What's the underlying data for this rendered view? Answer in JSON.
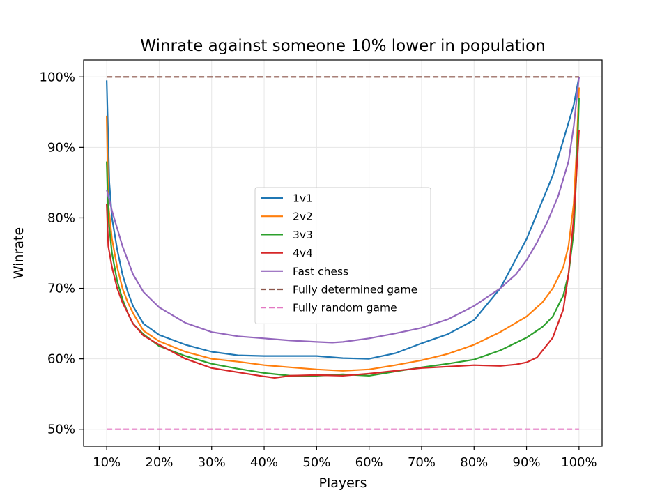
{
  "chart_data": {
    "type": "line",
    "title": "Winrate against someone 10% lower in population",
    "xlabel": "Players",
    "ylabel": "Winrate",
    "xlim": [
      5.6,
      104.4
    ],
    "ylim": [
      47.6,
      102.4
    ],
    "x_ticks": [
      10,
      20,
      30,
      40,
      50,
      60,
      70,
      80,
      90,
      100
    ],
    "x_tick_labels": [
      "10%",
      "20%",
      "30%",
      "40%",
      "50%",
      "60%",
      "70%",
      "80%",
      "90%",
      "100%"
    ],
    "y_ticks": [
      50,
      60,
      70,
      80,
      90,
      100
    ],
    "y_tick_labels": [
      "50%",
      "60%",
      "70%",
      "80%",
      "90%",
      "100%"
    ],
    "grid": true,
    "legend_position": "center",
    "series": [
      {
        "name": "1v1",
        "color": "#1f77b4",
        "style": "solid",
        "x": [
          10,
          10.5,
          11,
          12,
          13,
          14,
          15,
          17,
          20,
          25,
          30,
          35,
          40,
          45,
          50,
          55,
          60,
          65,
          70,
          75,
          80,
          85,
          90,
          95,
          97,
          99,
          100
        ],
        "y": [
          99.5,
          85,
          80,
          75.5,
          72,
          69.5,
          67.5,
          65,
          63.4,
          62,
          61,
          60.5,
          60.4,
          60.4,
          60.4,
          60.1,
          60,
          60.8,
          62.2,
          63.5,
          65.5,
          70,
          77,
          86,
          91,
          96,
          100
        ]
      },
      {
        "name": "2v2",
        "color": "#ff7f0e",
        "style": "solid",
        "x": [
          10,
          10.3,
          11,
          12,
          13,
          14,
          15,
          17,
          20,
          25,
          30,
          35,
          40,
          45,
          50,
          55,
          60,
          65,
          70,
          75,
          80,
          85,
          90,
          93,
          95,
          97,
          98,
          99,
          99.5,
          100
        ],
        "y": [
          94.5,
          82,
          77,
          73,
          70,
          68,
          66.5,
          64,
          62.5,
          61,
          60,
          59.6,
          59.1,
          58.8,
          58.5,
          58.3,
          58.5,
          59.1,
          59.8,
          60.7,
          62,
          63.8,
          66,
          68,
          70,
          73,
          76,
          82,
          89,
          98.5
        ]
      },
      {
        "name": "3v3",
        "color": "#2ca02c",
        "style": "solid",
        "x": [
          10,
          10.3,
          11,
          12,
          13,
          14,
          15,
          17,
          20,
          25,
          30,
          35,
          40,
          45,
          50,
          55,
          60,
          65,
          70,
          75,
          80,
          85,
          90,
          93,
          95,
          97,
          98,
          99,
          99.5,
          100
        ],
        "y": [
          88,
          80,
          75,
          71,
          68.5,
          66.5,
          65,
          63.5,
          61.8,
          60.4,
          59.3,
          58.6,
          58,
          57.6,
          57.6,
          57.8,
          57.6,
          58.2,
          58.8,
          59.3,
          59.9,
          61.2,
          63,
          64.5,
          66,
          69,
          72,
          78,
          86,
          97
        ]
      },
      {
        "name": "4v4",
        "color": "#d62728",
        "style": "solid",
        "x": [
          10,
          10.3,
          11,
          12,
          13,
          14,
          15,
          17,
          20,
          25,
          30,
          35,
          40,
          42,
          45,
          50,
          55,
          60,
          65,
          70,
          75,
          80,
          85,
          88,
          90,
          92,
          95,
          97,
          98,
          99,
          99.5,
          100
        ],
        "y": [
          82,
          76,
          73,
          70,
          68,
          66.5,
          65,
          63.3,
          62,
          60,
          58.7,
          58.1,
          57.5,
          57.3,
          57.6,
          57.7,
          57.6,
          57.9,
          58.3,
          58.7,
          58.9,
          59.1,
          59,
          59.2,
          59.5,
          60.2,
          63,
          67,
          72,
          80,
          86,
          92.5
        ]
      },
      {
        "name": "Fast chess",
        "color": "#9467bd",
        "style": "solid",
        "x": [
          10,
          11,
          12,
          13,
          14,
          15,
          17,
          20,
          25,
          30,
          35,
          40,
          45,
          50,
          53,
          55,
          60,
          65,
          70,
          75,
          80,
          85,
          88,
          90,
          92,
          94,
          96,
          98,
          99,
          100
        ],
        "y": [
          84,
          81,
          78.5,
          76,
          74,
          72,
          69.5,
          67.3,
          65.1,
          63.8,
          63.2,
          62.9,
          62.6,
          62.4,
          62.3,
          62.4,
          62.9,
          63.6,
          64.4,
          65.6,
          67.5,
          70,
          72,
          74,
          76.5,
          79.5,
          83,
          88,
          93,
          100
        ]
      },
      {
        "name": "Fully determined game",
        "color": "#8c564b",
        "style": "dashed",
        "x": [
          10,
          100
        ],
        "y": [
          100,
          100
        ]
      },
      {
        "name": "Fully random game",
        "color": "#e377c2",
        "style": "dashed",
        "x": [
          10,
          100
        ],
        "y": [
          50,
          50
        ]
      }
    ]
  }
}
